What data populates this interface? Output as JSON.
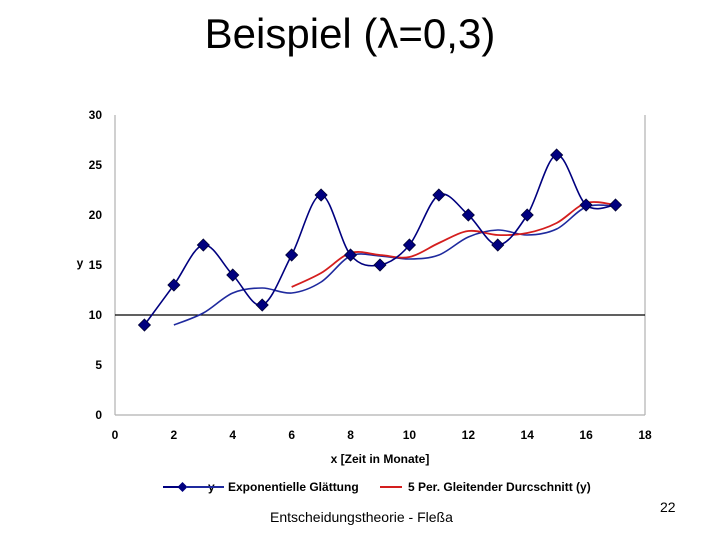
{
  "slide": {
    "title": "Beispiel (λ=0,3)",
    "footer": "Entscheidungstheorie - Fleßa",
    "page_number": "22"
  },
  "colors": {
    "y": "#00007f",
    "smoothing": "#1f2a9e",
    "moving_average": "#d41e1e",
    "axis": "#000000",
    "plot_border": "#b0b0b0"
  },
  "chart_data": {
    "type": "line",
    "xlabel": "x [Zeit in Monate]",
    "ylabel": "y",
    "xlim": [
      0,
      18
    ],
    "ylim": [
      0,
      30
    ],
    "x_ticks": [
      "0",
      "2",
      "4",
      "6",
      "8",
      "10",
      "12",
      "14",
      "16",
      "18"
    ],
    "y_ticks": [
      "0",
      "5",
      "10",
      "15",
      "20",
      "25",
      "30"
    ],
    "grid": false,
    "reference_line_y": 10,
    "legend_position": "bottom",
    "series": [
      {
        "name": "y",
        "marker": "diamond",
        "color": "#00007f",
        "x": [
          1,
          2,
          3,
          4,
          5,
          6,
          7,
          8,
          9,
          10,
          11,
          12,
          13,
          14,
          15,
          16,
          17
        ],
        "y": [
          9,
          13,
          17,
          14,
          11,
          16,
          22,
          16,
          15,
          17,
          22,
          20,
          17,
          20,
          26,
          21,
          21
        ]
      },
      {
        "name": "Exponentielle Glättung",
        "marker": "none",
        "color": "#1f2a9e",
        "x": [
          2,
          3,
          4,
          5,
          6,
          7,
          8,
          9,
          10,
          11,
          12,
          13,
          14,
          15,
          16,
          17
        ],
        "y": [
          9.0,
          10.2,
          12.2,
          12.7,
          12.2,
          13.3,
          15.9,
          15.9,
          15.6,
          16.0,
          17.8,
          18.5,
          18.0,
          18.6,
          20.8,
          20.9
        ]
      },
      {
        "name": "5 Per. Gleitender Durcschnitt (y)",
        "marker": "none",
        "color": "#d41e1e",
        "x": [
          6,
          7,
          8,
          9,
          10,
          11,
          12,
          13,
          14,
          15,
          16,
          17
        ],
        "y": [
          12.8,
          14.2,
          16.2,
          16.0,
          15.8,
          17.2,
          18.4,
          18.0,
          18.2,
          19.2,
          21.2,
          21.0
        ]
      }
    ]
  }
}
